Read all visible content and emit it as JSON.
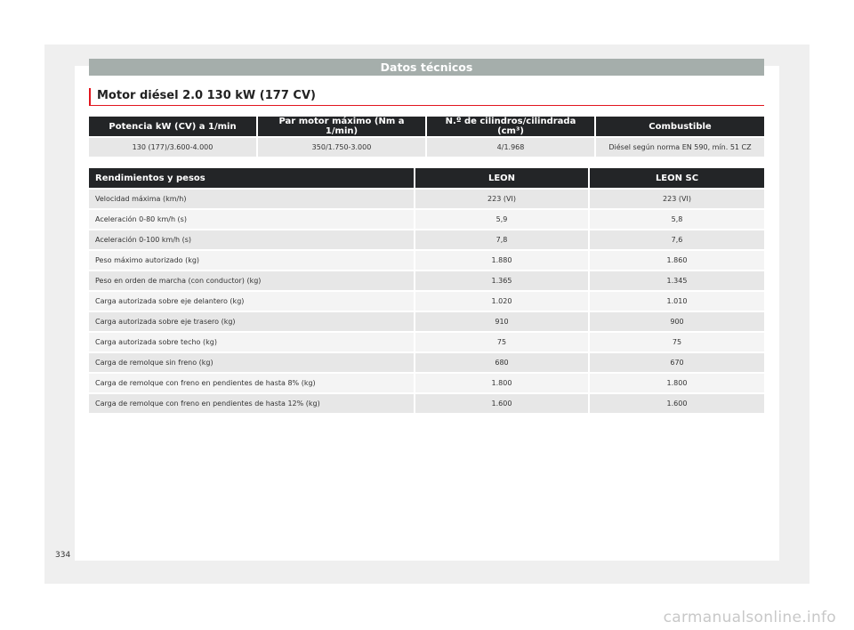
{
  "header": {
    "title": "Datos técnicos"
  },
  "section": {
    "title": "Motor diésel 2.0 130 kW (177 CV)"
  },
  "engine_table": {
    "headers": [
      "Potencia kW (CV) a 1/min",
      "Par motor máximo (Nm a 1/min)",
      "N.º de cilindros/cilindrada (cm³)",
      "Combustible"
    ],
    "row": [
      "130 (177)/3.600-4.000",
      "350/1.750-3.000",
      "4/1.968",
      "Diésel según norma EN 590, mín. 51 CZ"
    ]
  },
  "perf_table": {
    "headers": [
      "Rendimientos y pesos",
      "LEON",
      "LEON SC"
    ],
    "rows": [
      [
        "Velocidad máxima (km/h)",
        "223 (VI)",
        "223 (VI)"
      ],
      [
        "Aceleración 0-80 km/h (s)",
        "5,9",
        "5,8"
      ],
      [
        "Aceleración 0-100 km/h (s)",
        "7,8",
        "7,6"
      ],
      [
        "Peso máximo autorizado (kg)",
        "1.880",
        "1.860"
      ],
      [
        "Peso en orden de marcha (con conductor) (kg)",
        "1.365",
        "1.345"
      ],
      [
        "Carga autorizada sobre eje delantero (kg)",
        "1.020",
        "1.010"
      ],
      [
        "Carga autorizada sobre eje trasero (kg)",
        "910",
        "900"
      ],
      [
        "Carga autorizada sobre techo (kg)",
        "75",
        "75"
      ],
      [
        "Carga de remolque sin freno (kg)",
        "680",
        "670"
      ],
      [
        "Carga de remolque con freno en pendientes de hasta 8% (kg)",
        "1.800",
        "1.800"
      ],
      [
        "Carga de remolque con freno en pendientes de hasta 12% (kg)",
        "1.600",
        "1.600"
      ]
    ]
  },
  "page_number": "334",
  "watermark": "carmanualsonline.info"
}
